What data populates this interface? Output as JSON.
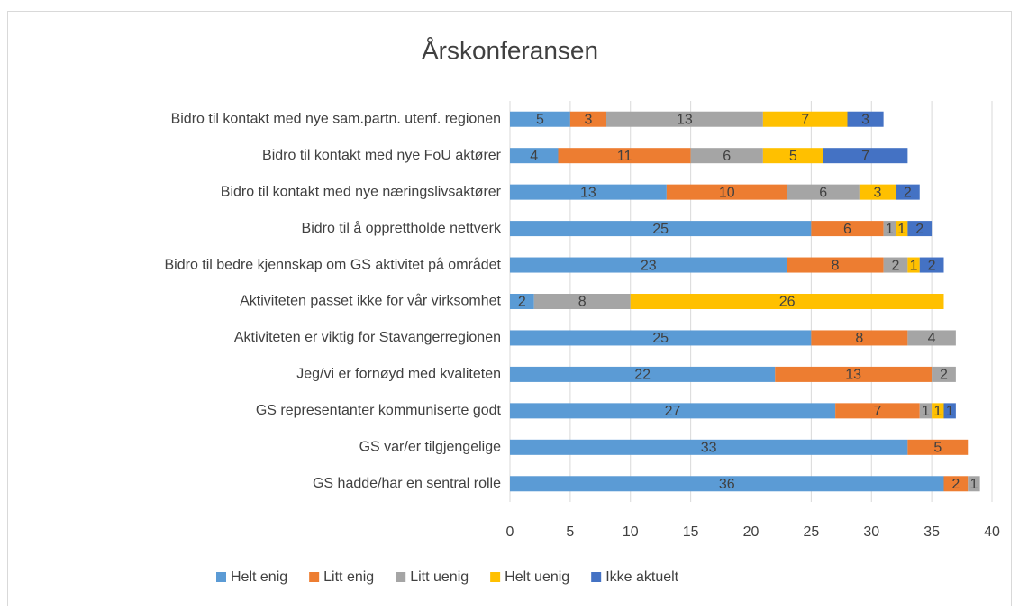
{
  "chart_data": {
    "type": "stacked_barh",
    "title": "Årskonferansen",
    "categories": [
      "Bidro til kontakt med nye sam.partn. utenf. regionen",
      "Bidro til kontakt med nye FoU aktører",
      "Bidro til kontakt med nye næringslivsaktører",
      "Bidro til å opprettholde nettverk",
      "Bidro til bedre kjennskap om GS aktivitet på området",
      "Aktiviteten passet ikke for vår virksomhet",
      "Aktiviteten er viktig for Stavangerregionen",
      "Jeg/vi er fornøyd med kvaliteten",
      "GS representanter kommuniserte godt",
      "GS var/er tilgjengelige",
      "GS hadde/har en sentral rolle"
    ],
    "series": [
      {
        "name": "Helt enig",
        "color": "#5b9bd5",
        "values": [
          5,
          4,
          13,
          25,
          23,
          2,
          25,
          22,
          27,
          33,
          36
        ]
      },
      {
        "name": "Litt enig",
        "color": "#ed7d31",
        "values": [
          3,
          11,
          10,
          6,
          8,
          null,
          8,
          13,
          7,
          5,
          2
        ]
      },
      {
        "name": "Litt uenig",
        "color": "#a5a5a5",
        "values": [
          13,
          6,
          6,
          1,
          2,
          8,
          4,
          2,
          1,
          null,
          1
        ]
      },
      {
        "name": "Helt uenig",
        "color": "#ffc000",
        "values": [
          7,
          5,
          3,
          1,
          1,
          26,
          null,
          null,
          1,
          null,
          null
        ]
      },
      {
        "name": "Ikke aktuelt",
        "color": "#4472c4",
        "values": [
          3,
          7,
          2,
          2,
          2,
          null,
          null,
          null,
          1,
          null,
          null
        ]
      }
    ],
    "xlim": [
      0,
      40
    ],
    "xticks": [
      0,
      5,
      10,
      15,
      20,
      25,
      30,
      35,
      40
    ],
    "grid": true,
    "legend": "bottom"
  }
}
